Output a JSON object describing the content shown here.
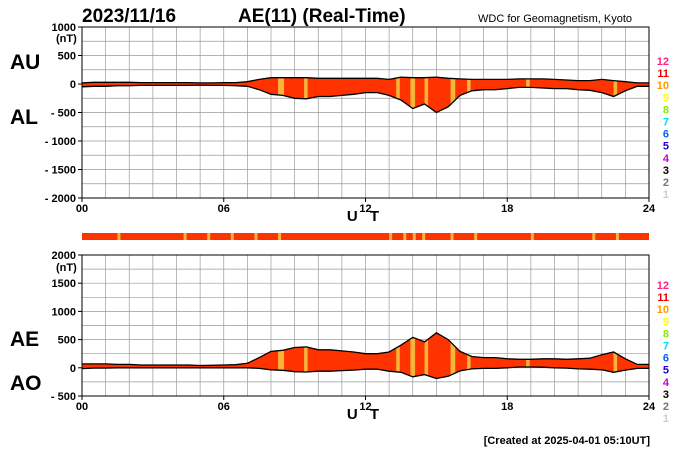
{
  "header": {
    "date": "2023/11/16",
    "title": "AE(11) (Real-Time)",
    "source": "WDC for Geomagnetism, Kyoto"
  },
  "footer": {
    "created": "[Created at 2025-04-01 05:10UT]"
  },
  "colors": {
    "fill": "#ff3300",
    "highlight": "#f7b43a",
    "bar": "#ff3300",
    "curve": "#000000"
  },
  "station_levels": [
    {
      "label": "12",
      "color": "#ff2288"
    },
    {
      "label": "11",
      "color": "#ee0000"
    },
    {
      "label": "10",
      "color": "#ff9900"
    },
    {
      "label": "9",
      "color": "#ffff00"
    },
    {
      "label": "8",
      "color": "#88ee00"
    },
    {
      "label": "7",
      "color": "#00ddee"
    },
    {
      "label": "6",
      "color": "#0066ff"
    },
    {
      "label": "5",
      "color": "#2200cc"
    },
    {
      "label": "4",
      "color": "#cc00cc"
    },
    {
      "label": "3",
      "color": "#000000"
    },
    {
      "label": "2",
      "color": "#777777"
    },
    {
      "label": "1",
      "color": "#cccccc"
    }
  ],
  "chart_data": [
    {
      "type": "area",
      "series_labels": [
        "AU",
        "AL"
      ],
      "xlabel": "U T",
      "ylabel_unit": "(nT)",
      "xlim": [
        0,
        24
      ],
      "ylim": [
        -2000,
        1000
      ],
      "x_ticks": [
        {
          "v": 0,
          "label": "00"
        },
        {
          "v": 6,
          "label": "06"
        },
        {
          "v": 12,
          "label": "12"
        },
        {
          "v": 18,
          "label": "18"
        },
        {
          "v": 24,
          "label": "24"
        }
      ],
      "y_ticks": [
        {
          "v": 1000,
          "label": "1000"
        },
        {
          "v": 500,
          "label": "500"
        },
        {
          "v": 0,
          "label": "0"
        },
        {
          "v": -500,
          "label": "- 500"
        },
        {
          "v": -1000,
          "label": "- 1000"
        },
        {
          "v": -1500,
          "label": "- 1500"
        },
        {
          "v": -2000,
          "label": "- 2000"
        }
      ],
      "x": [
        0,
        0.5,
        1,
        1.5,
        2,
        2.5,
        3,
        3.5,
        4,
        4.5,
        5,
        5.5,
        6,
        6.5,
        7,
        7.5,
        8,
        8.5,
        9,
        9.5,
        10,
        10.5,
        11,
        11.5,
        12,
        12.5,
        13,
        13.5,
        14,
        14.5,
        15,
        15.5,
        16,
        16.5,
        17,
        17.5,
        18,
        18.5,
        19,
        19.5,
        20,
        20.5,
        21,
        21.5,
        22,
        22.5,
        23,
        23.5,
        24
      ],
      "au": [
        20,
        30,
        30,
        30,
        30,
        25,
        25,
        25,
        25,
        25,
        20,
        20,
        25,
        25,
        40,
        80,
        110,
        110,
        110,
        110,
        100,
        100,
        100,
        100,
        100,
        100,
        80,
        120,
        110,
        110,
        120,
        100,
        90,
        80,
        80,
        80,
        80,
        90,
        90,
        90,
        80,
        70,
        60,
        60,
        80,
        60,
        40,
        20,
        20
      ],
      "al": [
        -50,
        -40,
        -40,
        -30,
        -30,
        -25,
        -25,
        -25,
        -25,
        -25,
        -20,
        -25,
        -25,
        -30,
        -40,
        -100,
        -180,
        -200,
        -250,
        -260,
        -220,
        -220,
        -200,
        -180,
        -150,
        -150,
        -200,
        -280,
        -430,
        -350,
        -500,
        -400,
        -200,
        -120,
        -100,
        -100,
        -80,
        -60,
        -60,
        -70,
        -80,
        -80,
        -100,
        -110,
        -150,
        -220,
        -120,
        -40,
        -40
      ],
      "highlight_bands": [
        [
          8.3,
          8.55
        ],
        [
          9.4,
          9.55
        ],
        [
          13.3,
          13.45
        ],
        [
          13.9,
          14.1
        ],
        [
          14.5,
          14.65
        ],
        [
          15.6,
          15.8
        ],
        [
          16.3,
          16.45
        ],
        [
          18.8,
          18.95
        ],
        [
          22.5,
          22.65
        ]
      ]
    },
    {
      "type": "area",
      "series_labels": [
        "AE",
        "AO"
      ],
      "xlabel": "U T",
      "ylabel_unit": "(nT)",
      "xlim": [
        0,
        24
      ],
      "ylim": [
        -500,
        2000
      ],
      "x_ticks": [
        {
          "v": 0,
          "label": "00"
        },
        {
          "v": 6,
          "label": "06"
        },
        {
          "v": 12,
          "label": "12"
        },
        {
          "v": 18,
          "label": "18"
        },
        {
          "v": 24,
          "label": "24"
        }
      ],
      "y_ticks": [
        {
          "v": 2000,
          "label": "2000"
        },
        {
          "v": 1500,
          "label": "1500"
        },
        {
          "v": 1000,
          "label": "1000"
        },
        {
          "v": 500,
          "label": "500"
        },
        {
          "v": 0,
          "label": "0"
        },
        {
          "v": -500,
          "label": "- 500"
        }
      ],
      "x": [
        0,
        0.5,
        1,
        1.5,
        2,
        2.5,
        3,
        3.5,
        4,
        4.5,
        5,
        5.5,
        6,
        6.5,
        7,
        7.5,
        8,
        8.5,
        9,
        9.5,
        10,
        10.5,
        11,
        11.5,
        12,
        12.5,
        13,
        13.5,
        14,
        14.5,
        15,
        15.5,
        16,
        16.5,
        17,
        17.5,
        18,
        18.5,
        19,
        19.5,
        20,
        20.5,
        21,
        21.5,
        22,
        22.5,
        23,
        23.5,
        24
      ],
      "ae": [
        70,
        70,
        70,
        60,
        60,
        50,
        50,
        50,
        50,
        50,
        40,
        45,
        50,
        55,
        80,
        180,
        290,
        310,
        360,
        370,
        320,
        320,
        300,
        280,
        250,
        250,
        280,
        400,
        540,
        460,
        620,
        500,
        290,
        200,
        180,
        180,
        160,
        150,
        150,
        160,
        160,
        150,
        160,
        170,
        230,
        280,
        160,
        60,
        60
      ],
      "ao": [
        -15,
        -5,
        -5,
        0,
        0,
        0,
        0,
        0,
        0,
        0,
        0,
        -2,
        0,
        -2,
        0,
        -10,
        -35,
        -45,
        -70,
        -75,
        -60,
        -60,
        -50,
        -40,
        -25,
        -25,
        -60,
        -80,
        -160,
        -120,
        -190,
        -150,
        -55,
        -20,
        -10,
        -10,
        0,
        15,
        15,
        10,
        0,
        -5,
        -20,
        -25,
        -35,
        -80,
        -40,
        -10,
        -10
      ],
      "highlight_bands": [
        [
          8.3,
          8.55
        ],
        [
          9.4,
          9.55
        ],
        [
          13.3,
          13.45
        ],
        [
          13.9,
          14.1
        ],
        [
          14.5,
          14.65
        ],
        [
          15.6,
          15.8
        ],
        [
          16.3,
          16.45
        ],
        [
          18.8,
          18.95
        ],
        [
          22.5,
          22.65
        ]
      ]
    }
  ],
  "status_bar": {
    "xlim": [
      0,
      24
    ],
    "marks": [
      1.5,
      4.3,
      5.3,
      6.3,
      7.3,
      8.3,
      13.0,
      13.6,
      14.0,
      14.4,
      15.6,
      16.6,
      19.0,
      21.6,
      22.6
    ]
  }
}
